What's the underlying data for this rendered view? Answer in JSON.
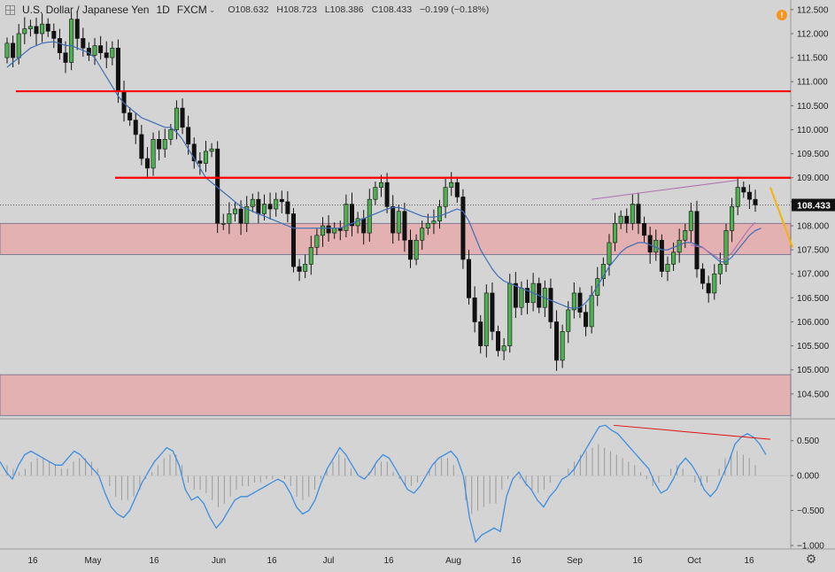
{
  "header": {
    "symbol": "U.S. Dollar / Japanese Yen",
    "interval": "1D",
    "source": "FXCM",
    "open": "O108.632",
    "high": "H108.723",
    "low": "L108.386",
    "close": "C108.433",
    "change": "−0.199 (−0.18%)",
    "dropdown_icon": "chevron-down-icon",
    "alert_icon": "info-icon",
    "alert_glyph": "!"
  },
  "price_label": "108.433",
  "settings_glyph": "⚙",
  "colors": {
    "background": "#d4d4d4",
    "up_candle": "#4caf50",
    "down_candle": "#111111",
    "ma_line": "#3d6db5",
    "ma2_line": "#b06fb0",
    "resistance": "#ff0000",
    "zone_fill": "#e8a6a6",
    "zone_border": "#6a6a8a",
    "arrow": "#f5b400",
    "oscillator": "#3d8de0",
    "divergence_line": "#e01010"
  },
  "x_axis_labels": [
    "16",
    "May",
    "16",
    "Jun",
    "16",
    "Jul",
    "16",
    "Aug",
    "16",
    "Sep",
    "16",
    "Oct",
    "16"
  ],
  "chart_data": [
    {
      "type": "candlestick",
      "title": "U.S. Dollar / Japanese Yen 1D FXCM",
      "y_axis_ticks": [
        112.5,
        112.0,
        111.5,
        111.0,
        110.5,
        110.0,
        109.5,
        109.0,
        108.5,
        108.0,
        107.5,
        107.0,
        106.5,
        106.0,
        105.5,
        105.0,
        104.5
      ],
      "y_tick_labels": [
        "112.500",
        "112.000",
        "111.500",
        "111.000",
        "110.500",
        "110.000",
        "109.500",
        "109.000",
        "108.500",
        "108.000",
        "107.500",
        "107.000",
        "106.500",
        "106.000",
        "105.500",
        "105.000",
        "104.500"
      ],
      "ylim": [
        104.0,
        112.7
      ],
      "last_price": 108.433,
      "horizontal_lines": [
        110.8,
        109.0
      ],
      "zones": [
        [
          107.4,
          108.05
        ],
        [
          104.05,
          104.9
        ]
      ],
      "close": [
        111.8,
        111.5,
        112.0,
        112.1,
        112.15,
        112.0,
        112.2,
        112.05,
        111.9,
        111.6,
        111.4,
        112.3,
        111.9,
        111.7,
        111.55,
        111.75,
        111.6,
        111.5,
        111.7,
        110.8,
        110.35,
        110.2,
        109.9,
        109.4,
        109.2,
        109.8,
        109.6,
        109.8,
        110.0,
        110.45,
        110.05,
        109.7,
        109.35,
        109.3,
        109.55,
        109.6,
        108.05,
        108.05,
        108.25,
        108.35,
        108.05,
        108.4,
        108.55,
        108.25,
        108.45,
        108.35,
        108.55,
        108.5,
        108.25,
        107.15,
        107.05,
        107.2,
        107.55,
        107.8,
        108.0,
        107.85,
        107.95,
        107.9,
        108.45,
        108.0,
        108.15,
        107.85,
        108.55,
        108.8,
        108.9,
        108.4,
        107.85,
        108.3,
        107.7,
        107.3,
        107.7,
        107.95,
        108.05,
        108.1,
        108.4,
        108.8,
        108.9,
        108.6,
        107.3,
        106.5,
        106.0,
        105.5,
        106.6,
        105.8,
        105.4,
        105.5,
        106.8,
        106.3,
        106.7,
        106.4,
        106.8,
        106.3,
        106.7,
        106.0,
        105.2,
        105.8,
        106.25,
        106.6,
        106.2,
        105.9,
        106.55,
        106.9,
        107.2,
        107.65,
        108.05,
        108.2,
        108.05,
        108.45,
        108.05,
        107.8,
        107.45,
        107.7,
        107.05,
        107.2,
        107.45,
        107.7,
        107.9,
        108.3,
        107.1,
        106.8,
        106.6,
        107.0,
        107.2,
        107.9,
        108.4,
        108.8,
        108.7,
        108.55,
        108.433
      ],
      "sma_20": [
        111.3,
        111.4,
        111.5,
        111.6,
        111.7,
        111.75,
        111.8,
        111.82,
        111.83,
        111.8,
        111.75,
        111.75,
        111.7,
        111.65,
        111.6,
        111.5,
        111.3,
        111.1,
        110.9,
        110.7,
        110.55,
        110.45,
        110.35,
        110.25,
        110.2,
        110.15,
        110.1,
        110.05,
        110.05,
        109.95,
        109.8,
        109.6,
        109.4,
        109.2,
        109.0,
        108.9,
        108.8,
        108.7,
        108.6,
        108.5,
        108.4,
        108.35,
        108.3,
        108.25,
        108.2,
        108.15,
        108.1,
        108.05,
        108.0,
        107.95,
        107.95,
        107.95,
        107.95,
        107.95,
        107.95,
        107.95,
        107.95,
        107.95,
        108.0,
        108.05,
        108.1,
        108.15,
        108.2,
        108.25,
        108.3,
        108.35,
        108.38,
        108.38,
        108.35,
        108.3,
        108.25,
        108.2,
        108.18,
        108.18,
        108.2,
        108.25,
        108.3,
        108.35,
        108.3,
        108.1,
        107.8,
        107.5,
        107.3,
        107.1,
        106.95,
        106.85,
        106.8,
        106.75,
        106.7,
        106.65,
        106.6,
        106.55,
        106.5,
        106.45,
        106.4,
        106.35,
        106.3,
        106.28,
        106.3,
        106.4,
        106.55,
        106.75,
        106.95,
        107.15,
        107.3,
        107.45,
        107.55,
        107.6,
        107.65,
        107.65,
        107.6,
        107.55,
        107.5,
        107.5,
        107.55,
        107.6,
        107.65,
        107.65,
        107.6,
        107.55,
        107.45,
        107.35,
        107.25,
        107.25,
        107.35,
        107.5,
        107.65,
        107.8,
        107.9,
        107.95
      ]
    },
    {
      "type": "line",
      "title": "",
      "y_axis_ticks": [
        0.5,
        0.0,
        -0.5,
        -1.0
      ],
      "y_tick_labels": [
        "0.500",
        "0.000",
        "−0.500",
        "−1.000"
      ],
      "ylim": [
        -1.05,
        0.8
      ],
      "values": [
        0.2,
        0.05,
        -0.05,
        0.15,
        0.3,
        0.35,
        0.3,
        0.25,
        0.2,
        0.15,
        0.15,
        0.25,
        0.35,
        0.3,
        0.2,
        0.1,
        0.0,
        -0.25,
        -0.45,
        -0.55,
        -0.6,
        -0.5,
        -0.3,
        -0.1,
        0.05,
        0.2,
        0.3,
        0.4,
        0.35,
        0.15,
        -0.2,
        -0.35,
        -0.3,
        -0.4,
        -0.6,
        -0.75,
        -0.65,
        -0.5,
        -0.35,
        -0.3,
        -0.3,
        -0.25,
        -0.2,
        -0.15,
        -0.1,
        -0.05,
        -0.1,
        -0.25,
        -0.45,
        -0.55,
        -0.5,
        -0.35,
        -0.1,
        0.1,
        0.25,
        0.4,
        0.3,
        0.15,
        0.0,
        -0.05,
        0.05,
        0.2,
        0.3,
        0.25,
        0.1,
        -0.05,
        -0.2,
        -0.25,
        -0.15,
        0.0,
        0.15,
        0.25,
        0.3,
        0.35,
        0.25,
        0.0,
        -0.6,
        -0.95,
        -0.85,
        -0.8,
        -0.75,
        -0.8,
        -0.3,
        -0.05,
        0.05,
        -0.1,
        -0.2,
        -0.35,
        -0.45,
        -0.3,
        -0.2,
        -0.05,
        0.0,
        0.1,
        0.25,
        0.4,
        0.55,
        0.7,
        0.72,
        0.65,
        0.6,
        0.5,
        0.4,
        0.3,
        0.2,
        0.1,
        -0.1,
        -0.25,
        -0.2,
        -0.05,
        0.15,
        0.25,
        0.15,
        0.0,
        -0.2,
        -0.3,
        -0.2,
        0.0,
        0.2,
        0.45,
        0.55,
        0.6,
        0.55,
        0.45,
        0.3
      ],
      "histogram": [
        0.15,
        0.1,
        0.05,
        0.1,
        0.2,
        0.25,
        0.25,
        0.2,
        0.15,
        0.1,
        0.1,
        0.2,
        0.25,
        0.25,
        0.2,
        0.1,
        0.0,
        -0.15,
        -0.3,
        -0.35,
        -0.35,
        -0.3,
        -0.2,
        -0.05,
        0.05,
        0.15,
        0.25,
        0.3,
        0.3,
        0.15,
        -0.1,
        -0.2,
        -0.2,
        -0.25,
        -0.35,
        -0.45,
        -0.4,
        -0.3,
        -0.2,
        -0.15,
        -0.15,
        -0.1,
        -0.1,
        -0.05,
        -0.05,
        0.0,
        -0.05,
        -0.15,
        -0.3,
        -0.35,
        -0.3,
        -0.2,
        -0.05,
        0.1,
        0.2,
        0.3,
        0.25,
        0.1,
        0.0,
        0.0,
        0.05,
        0.15,
        0.2,
        0.2,
        0.05,
        -0.05,
        -0.15,
        -0.15,
        -0.1,
        0.0,
        0.1,
        0.2,
        0.25,
        0.25,
        0.15,
        0.0,
        -0.35,
        -0.55,
        -0.5,
        -0.45,
        -0.4,
        -0.4,
        -0.2,
        -0.05,
        0.0,
        -0.05,
        -0.15,
        -0.2,
        -0.25,
        -0.2,
        -0.1,
        0.0,
        0.0,
        0.1,
        0.2,
        0.3,
        0.35,
        0.4,
        0.45,
        0.4,
        0.35,
        0.3,
        0.25,
        0.2,
        0.15,
        0.05,
        -0.05,
        -0.15,
        -0.1,
        0.0,
        0.1,
        0.15,
        0.1,
        0.0,
        -0.1,
        -0.15,
        -0.1,
        0.0,
        0.1,
        0.25,
        0.3,
        0.35,
        0.3,
        0.25,
        0.15
      ]
    }
  ]
}
